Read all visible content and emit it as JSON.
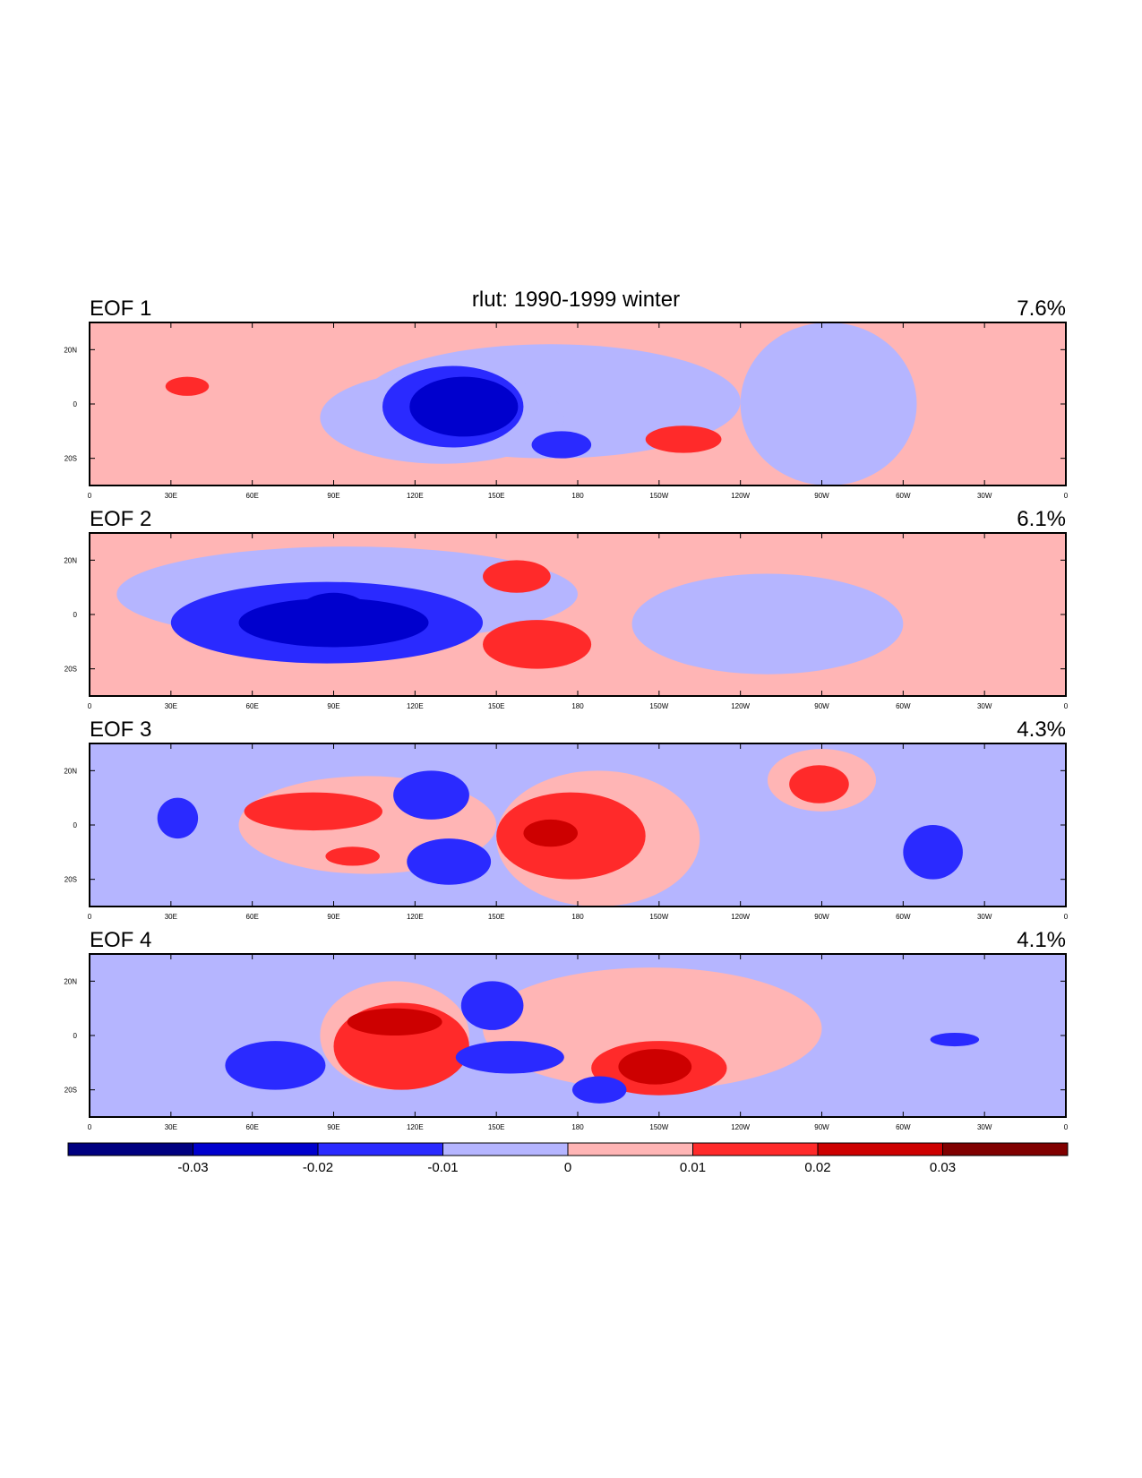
{
  "chart_data": {
    "type": "heatmap",
    "title": "rlut: 1990-1999 winter",
    "x_tick_labels": [
      "0",
      "30E",
      "60E",
      "90E",
      "120E",
      "150E",
      "180",
      "150W",
      "120W",
      "90W",
      "60W",
      "30W",
      "0"
    ],
    "x_tick_lons": [
      0,
      30,
      60,
      90,
      120,
      150,
      180,
      210,
      240,
      270,
      300,
      330,
      360
    ],
    "y_tick_labels": [
      "20N",
      "0",
      "20S"
    ],
    "y_tick_lats": [
      20,
      0,
      -20
    ],
    "xlim": [
      0,
      360
    ],
    "ylim": [
      -30,
      30
    ],
    "panels": [
      {
        "label": "EOF 1",
        "variance": "7.6%",
        "background": 0.005,
        "regions": [
          {
            "lon": [
              100,
              240
            ],
            "lat": [
              -20,
              22
            ],
            "value": -0.005
          },
          {
            "lon": [
              240,
              305
            ],
            "lat": [
              -30,
              30
            ],
            "value": -0.005
          },
          {
            "lon": [
              85,
              175
            ],
            "lat": [
              -22,
              12
            ],
            "value": -0.005
          },
          {
            "lon": [
              108,
              160
            ],
            "lat": [
              -16,
              14
            ],
            "value": -0.015
          },
          {
            "lon": [
              118,
              158
            ],
            "lat": [
              -12,
              10
            ],
            "value": -0.025
          },
          {
            "lon": [
              125,
              150
            ],
            "lat": [
              -4,
              6
            ],
            "value": -0.025
          },
          {
            "lon": [
              163,
              185
            ],
            "lat": [
              -20,
              -10
            ],
            "value": -0.015
          },
          {
            "lon": [
              205,
              233
            ],
            "lat": [
              -18,
              -8
            ],
            "value": 0.015
          },
          {
            "lon": [
              28,
              44
            ],
            "lat": [
              3,
              10
            ],
            "value": 0.015
          }
        ]
      },
      {
        "label": "EOF 2",
        "variance": "6.1%",
        "background": 0.005,
        "regions": [
          {
            "lon": [
              10,
              180
            ],
            "lat": [
              -10,
              25
            ],
            "value": -0.005
          },
          {
            "lon": [
              200,
              300
            ],
            "lat": [
              -22,
              15
            ],
            "value": -0.005
          },
          {
            "lon": [
              30,
              145
            ],
            "lat": [
              -18,
              12
            ],
            "value": -0.015
          },
          {
            "lon": [
              55,
              125
            ],
            "lat": [
              -12,
              6
            ],
            "value": -0.025
          },
          {
            "lon": [
              75,
              105
            ],
            "lat": [
              -12,
              8
            ],
            "value": -0.025
          },
          {
            "lon": [
              145,
              185
            ],
            "lat": [
              -20,
              -2
            ],
            "value": 0.015
          },
          {
            "lon": [
              145,
              170
            ],
            "lat": [
              8,
              20
            ],
            "value": 0.015
          }
        ]
      },
      {
        "label": "EOF 3",
        "variance": "4.3%",
        "background": -0.005,
        "regions": [
          {
            "lon": [
              55,
              150
            ],
            "lat": [
              -18,
              18
            ],
            "value": 0.005
          },
          {
            "lon": [
              150,
              225
            ],
            "lat": [
              -30,
              20
            ],
            "value": 0.005
          },
          {
            "lon": [
              250,
              290
            ],
            "lat": [
              5,
              28
            ],
            "value": 0.005
          },
          {
            "lon": [
              57,
              108
            ],
            "lat": [
              -2,
              12
            ],
            "value": 0.015
          },
          {
            "lon": [
              87,
              107
            ],
            "lat": [
              -15,
              -8
            ],
            "value": 0.015
          },
          {
            "lon": [
              150,
              205
            ],
            "lat": [
              -20,
              12
            ],
            "value": 0.015
          },
          {
            "lon": [
              160,
              180
            ],
            "lat": [
              -8,
              2
            ],
            "value": 0.025
          },
          {
            "lon": [
              258,
              280
            ],
            "lat": [
              8,
              22
            ],
            "value": 0.015
          },
          {
            "lon": [
              112,
              140
            ],
            "lat": [
              2,
              20
            ],
            "value": -0.015
          },
          {
            "lon": [
              117,
              148
            ],
            "lat": [
              -22,
              -5
            ],
            "value": -0.015
          },
          {
            "lon": [
              300,
              322
            ],
            "lat": [
              -20,
              0
            ],
            "value": -0.015
          },
          {
            "lon": [
              25,
              40
            ],
            "lat": [
              -5,
              10
            ],
            "value": -0.015
          }
        ]
      },
      {
        "label": "EOF 4",
        "variance": "4.1%",
        "background": -0.005,
        "regions": [
          {
            "lon": [
              85,
              140
            ],
            "lat": [
              -20,
              20
            ],
            "value": 0.005
          },
          {
            "lon": [
              145,
              270
            ],
            "lat": [
              -20,
              25
            ],
            "value": 0.005
          },
          {
            "lon": [
              90,
              140
            ],
            "lat": [
              -20,
              12
            ],
            "value": 0.015
          },
          {
            "lon": [
              95,
              130
            ],
            "lat": [
              0,
              10
            ],
            "value": 0.025
          },
          {
            "lon": [
              185,
              235
            ],
            "lat": [
              -22,
              -2
            ],
            "value": 0.015
          },
          {
            "lon": [
              195,
              222
            ],
            "lat": [
              -18,
              -5
            ],
            "value": 0.025
          },
          {
            "lon": [
              50,
              87
            ],
            "lat": [
              -20,
              -2
            ],
            "value": -0.015
          },
          {
            "lon": [
              135,
              175
            ],
            "lat": [
              -14,
              -2
            ],
            "value": -0.015
          },
          {
            "lon": [
              137,
              160
            ],
            "lat": [
              2,
              20
            ],
            "value": -0.015
          },
          {
            "lon": [
              178,
              198
            ],
            "lat": [
              -25,
              -15
            ],
            "value": -0.015
          },
          {
            "lon": [
              310,
              328
            ],
            "lat": [
              -4,
              1
            ],
            "value": -0.015
          }
        ]
      }
    ],
    "colorbar": {
      "levels": [
        -0.03,
        -0.02,
        -0.01,
        0,
        0.01,
        0.02,
        0.03
      ],
      "labels": [
        "-0.03",
        "-0.02",
        "-0.01",
        "0",
        "0.01",
        "0.02",
        "0.03"
      ],
      "colors": [
        "#000080",
        "#0000cd",
        "#2a2aff",
        "#b5b5ff",
        "#ffb5b5",
        "#ff2a2a",
        "#cd0000",
        "#800000"
      ]
    }
  }
}
